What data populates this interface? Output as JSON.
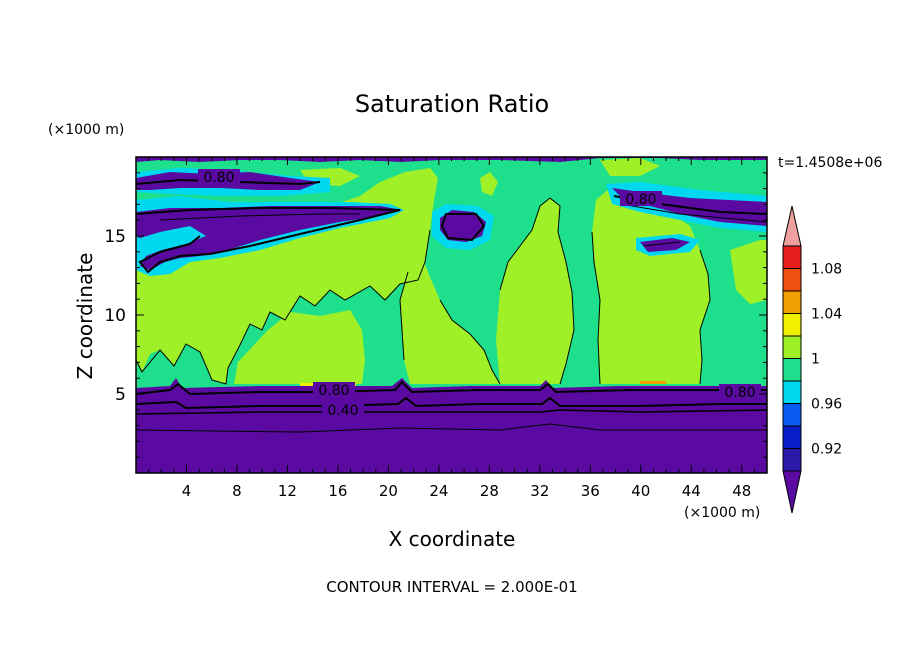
{
  "chart_data": {
    "type": "contour",
    "title": "Saturation Ratio",
    "xlabel": "X coordinate",
    "ylabel": "Z coordinate",
    "x_unit": "(×1000 m)",
    "y_unit": "(×1000 m)",
    "time_label": "t=1.4508e+06",
    "footer": "CONTOUR INTERVAL = 2.000E-01",
    "xlim": [
      0,
      50
    ],
    "ylim": [
      0,
      20
    ],
    "x_ticks": [
      4,
      8,
      12,
      16,
      20,
      24,
      28,
      32,
      36,
      40,
      44,
      48
    ],
    "y_ticks": [
      5,
      10,
      15
    ],
    "colorbar": {
      "labels": [
        "1.08",
        "1.04",
        "1",
        "0.96",
        "0.92"
      ],
      "levels": [
        0.9,
        0.92,
        0.94,
        0.96,
        0.98,
        1.0,
        1.02,
        1.04,
        1.06,
        1.08,
        1.1
      ],
      "colors": [
        "#5a0aa0",
        "#2b1aa8",
        "#0a1ec8",
        "#0a5af0",
        "#00d8f0",
        "#1ee08c",
        "#a0f028",
        "#f0f000",
        "#f0a000",
        "#f05010",
        "#e81e1e",
        "#f0a0a0"
      ]
    },
    "contour_labels": [
      "0.80",
      "0.80",
      "0.80",
      "0.40",
      "0.80"
    ],
    "grid": false
  },
  "colors": {
    "low": "#5a0aa0",
    "near_one": "#1ee08c",
    "just_above_one": "#a0f028",
    "cyan": "#00d8f0",
    "blue": "#0a1ec8"
  }
}
